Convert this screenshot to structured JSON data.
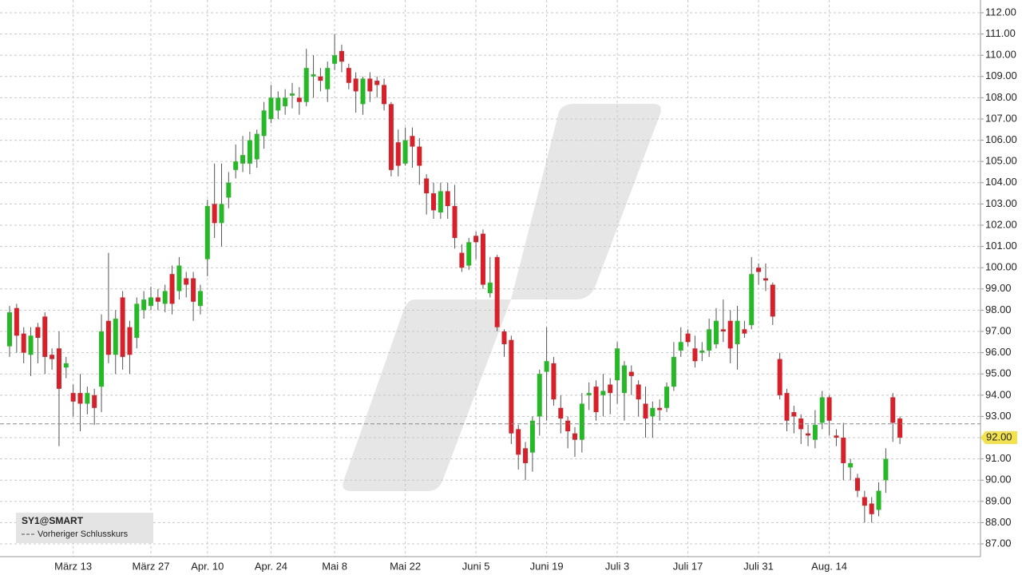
{
  "chart_data": {
    "type": "candlestick",
    "symbol": "SY1@SMART",
    "previous_close_label": "Vorheriger Schlusskurs",
    "previous_close": 92.65,
    "price_marker": {
      "value": 92,
      "label": "92.00"
    },
    "up_color": "#27b827",
    "down_color": "#d6202a",
    "grid": true,
    "categories": [
      null,
      null,
      null,
      null,
      null,
      null,
      null,
      null,
      null,
      "März 13",
      null,
      null,
      null,
      null,
      null,
      null,
      null,
      null,
      null,
      null,
      "März 27",
      null,
      null,
      null,
      null,
      null,
      null,
      null,
      "Apr. 10",
      null,
      null,
      null,
      null,
      null,
      null,
      null,
      null,
      "Apr. 24",
      null,
      null,
      null,
      null,
      null,
      null,
      null,
      null,
      "Mai 8",
      null,
      null,
      null,
      null,
      null,
      null,
      null,
      null,
      null,
      "Mai 22",
      null,
      null,
      null,
      null,
      null,
      null,
      null,
      null,
      null,
      "Juni 5",
      null,
      null,
      null,
      null,
      null,
      null,
      null,
      null,
      null,
      "Juni 19",
      null,
      null,
      null,
      null,
      null,
      null,
      null,
      null,
      null,
      "Juli 3",
      null,
      null,
      null,
      null,
      null,
      null,
      null,
      null,
      null,
      "Juli 17",
      null,
      null,
      null,
      null,
      null,
      null,
      null,
      null,
      null,
      "Juli 31",
      null,
      null,
      null,
      null,
      null,
      null,
      null,
      null,
      null,
      "Aug. 14",
      null,
      null,
      null,
      null,
      null,
      null,
      null,
      null,
      null,
      null
    ],
    "open": [
      96.3,
      98.1,
      96.9,
      95.9,
      97.2,
      97.7,
      95.9,
      96.2,
      95.3,
      94.1,
      94.1,
      93.6,
      94.0,
      94.4,
      97.5,
      95.9,
      98.6,
      97.2,
      96.7,
      98.0,
      98.2,
      98.6,
      98.3,
      99.7,
      98.9,
      99.5,
      99.5,
      98.2,
      100.4,
      103.0,
      102.1,
      103.3,
      104.6,
      104.9,
      104.9,
      105.1,
      106.2,
      107.0,
      107.4,
      107.6,
      108.1,
      108.0,
      107.8,
      109.0,
      109.0,
      108.4,
      109.6,
      110.2,
      109.4,
      108.9,
      107.7,
      108.9,
      108.8,
      108.6,
      107.7,
      105.9,
      104.9,
      106.2,
      105.7,
      104.2,
      103.5,
      102.6,
      103.6,
      102.9,
      100.7,
      100.1,
      101.5,
      101.6,
      98.8,
      100.5,
      97.0,
      96.6,
      92.4,
      91.5,
      91.3,
      93.0,
      95.1,
      95.5,
      93.4,
      92.8,
      92.2,
      91.9,
      94.0,
      94.4,
      94.0,
      94.5,
      94.7,
      94.1,
      95.1,
      94.5,
      93.6,
      93.0,
      93.4,
      93.4,
      94.4,
      96.1,
      96.9,
      96.2,
      96.0,
      96.1,
      96.4,
      97.1,
      97.5,
      96.4,
      97.1,
      97.3,
      100.0,
      99.5,
      99.2,
      95.7,
      94.1,
      93.2,
      92.9,
      92.2,
      91.9,
      92.7,
      93.9,
      92.1,
      92.0,
      90.6,
      90.1,
      89.2,
      88.9,
      88.6,
      90.0,
      93.9,
      92.9
    ],
    "high": [
      98.2,
      98.3,
      97.2,
      97.2,
      97.4,
      97.9,
      96.2,
      97.0,
      95.8,
      94.5,
      95.0,
      94.4,
      94.3,
      97.8,
      100.7,
      98.0,
      98.9,
      97.5,
      98.6,
      98.9,
      99.1,
      99.0,
      99.2,
      100.1,
      100.5,
      99.8,
      99.8,
      99.2,
      103.2,
      104.9,
      104.9,
      104.5,
      105.8,
      106.2,
      106.4,
      106.5,
      107.8,
      108.6,
      108.3,
      108.4,
      108.7,
      108.5,
      110.3,
      110.0,
      109.4,
      109.7,
      111.0,
      110.5,
      109.6,
      109.2,
      109.0,
      109.2,
      109.0,
      108.9,
      107.8,
      106.5,
      106.6,
      106.6,
      106.1,
      104.4,
      104.0,
      104.0,
      104.0,
      103.9,
      101.1,
      101.4,
      101.7,
      101.8,
      100.5,
      100.6,
      97.1,
      96.8,
      92.6,
      91.8,
      93.0,
      95.2,
      97.2,
      95.8,
      94.0,
      93.0,
      92.5,
      94.1,
      94.6,
      94.7,
      95.0,
      94.8,
      96.5,
      95.6,
      95.4,
      94.7,
      94.4,
      93.7,
      93.8,
      94.6,
      96.5,
      97.2,
      97.1,
      96.8,
      96.5,
      97.6,
      98.1,
      98.5,
      98.0,
      98.2,
      97.5,
      100.5,
      100.2,
      100.2,
      99.3,
      96.0,
      94.3,
      93.5,
      93.1,
      92.6,
      93.3,
      94.2,
      94.0,
      92.4,
      92.7,
      91.0,
      90.3,
      89.5,
      89.2,
      89.9,
      91.5,
      94.1,
      93.0
    ],
    "low": [
      95.8,
      96.0,
      95.5,
      94.9,
      95.5,
      95.0,
      95.2,
      91.6,
      94.8,
      93.0,
      92.3,
      93.1,
      92.6,
      93.2,
      95.5,
      95.0,
      95.2,
      95.0,
      96.2,
      97.6,
      98.0,
      98.0,
      97.9,
      97.8,
      98.5,
      98.6,
      97.5,
      97.8,
      99.6,
      101.4,
      101.0,
      102.8,
      104.2,
      104.5,
      104.4,
      104.7,
      105.6,
      106.8,
      107.0,
      107.2,
      107.5,
      107.2,
      107.6,
      108.0,
      108.3,
      107.8,
      109.3,
      109.2,
      108.4,
      107.3,
      107.2,
      107.8,
      108.0,
      107.4,
      104.3,
      104.3,
      104.8,
      104.7,
      103.9,
      102.5,
      102.3,
      102.3,
      102.3,
      100.9,
      99.8,
      99.9,
      100.4,
      99.0,
      98.6,
      97.0,
      95.8,
      91.7,
      90.5,
      90.0,
      90.4,
      92.1,
      92.8,
      93.5,
      92.2,
      91.5,
      91.1,
      91.3,
      93.3,
      92.8,
      93.0,
      93.1,
      93.6,
      92.8,
      94.0,
      93.0,
      92.0,
      92.0,
      92.8,
      93.2,
      94.2,
      95.8,
      96.3,
      95.3,
      95.6,
      95.8,
      96.2,
      96.5,
      95.5,
      95.2,
      96.7,
      97.1,
      99.2,
      98.9,
      97.3,
      93.8,
      92.3,
      92.2,
      91.7,
      91.6,
      91.5,
      92.4,
      92.1,
      91.6,
      90.0,
      90.0,
      89.2,
      88.0,
      88.0,
      88.3,
      89.4,
      91.8,
      91.7
    ],
    "close": [
      97.9,
      96.8,
      96.0,
      96.8,
      96.7,
      95.8,
      95.7,
      94.3,
      95.5,
      93.7,
      93.6,
      94.1,
      93.4,
      97.0,
      95.9,
      97.6,
      95.8,
      95.9,
      98.3,
      98.5,
      98.6,
      98.4,
      98.9,
      98.3,
      100.1,
      99.2,
      98.4,
      98.9,
      102.9,
      102.1,
      103.0,
      104.0,
      105.0,
      105.3,
      106.0,
      106.3,
      107.4,
      108.0,
      108.0,
      108.0,
      108.2,
      107.8,
      109.4,
      109.1,
      108.8,
      109.4,
      110.0,
      109.7,
      108.7,
      108.3,
      108.9,
      108.3,
      108.6,
      107.7,
      104.6,
      104.8,
      106.0,
      105.7,
      104.8,
      103.5,
      102.7,
      103.6,
      102.9,
      101.4,
      100.0,
      101.2,
      101.2,
      99.2,
      99.3,
      97.2,
      96.4,
      92.2,
      91.2,
      90.8,
      92.8,
      95.0,
      95.6,
      93.8,
      92.9,
      92.3,
      91.9,
      93.6,
      94.1,
      93.2,
      94.2,
      94.1,
      96.2,
      95.4,
      94.9,
      93.8,
      92.9,
      93.4,
      93.3,
      94.4,
      95.8,
      96.5,
      96.5,
      95.6,
      96.1,
      97.1,
      97.5,
      97.0,
      96.2,
      97.5,
      96.9,
      99.7,
      99.8,
      99.4,
      97.7,
      94.0,
      92.8,
      93.0,
      92.4,
      92.1,
      92.6,
      93.9,
      92.8,
      92.0,
      90.8,
      90.8,
      89.5,
      88.8,
      88.4,
      89.5,
      91.0,
      92.7,
      92.0
    ],
    "ylim": [
      86.4,
      112.6
    ],
    "yticks": [
      {
        "value": 87,
        "label": "87.00"
      },
      {
        "value": 88,
        "label": "88.00"
      },
      {
        "value": 89,
        "label": "89.00"
      },
      {
        "value": 90,
        "label": "90.00"
      },
      {
        "value": 91,
        "label": "91.00"
      },
      {
        "value": 92,
        "label": "92.00"
      },
      {
        "value": 93,
        "label": "93.00"
      },
      {
        "value": 94,
        "label": "94.00"
      },
      {
        "value": 95,
        "label": "95.00"
      },
      {
        "value": 96,
        "label": "96.00"
      },
      {
        "value": 97,
        "label": "97.00"
      },
      {
        "value": 98,
        "label": "98.00"
      },
      {
        "value": 99,
        "label": "99.00"
      },
      {
        "value": 100,
        "label": "100.00"
      },
      {
        "value": 101,
        "label": "101.00"
      },
      {
        "value": 102,
        "label": "102.00"
      },
      {
        "value": 103,
        "label": "103.00"
      },
      {
        "value": 104,
        "label": "104.00"
      },
      {
        "value": 105,
        "label": "105.00"
      },
      {
        "value": 106,
        "label": "106.00"
      },
      {
        "value": 107,
        "label": "107.00"
      },
      {
        "value": 108,
        "label": "108.00"
      },
      {
        "value": 109,
        "label": "109.00"
      },
      {
        "value": 110,
        "label": "110.00"
      },
      {
        "value": 111,
        "label": "111.00"
      },
      {
        "value": 112,
        "label": "112.00"
      }
    ]
  }
}
